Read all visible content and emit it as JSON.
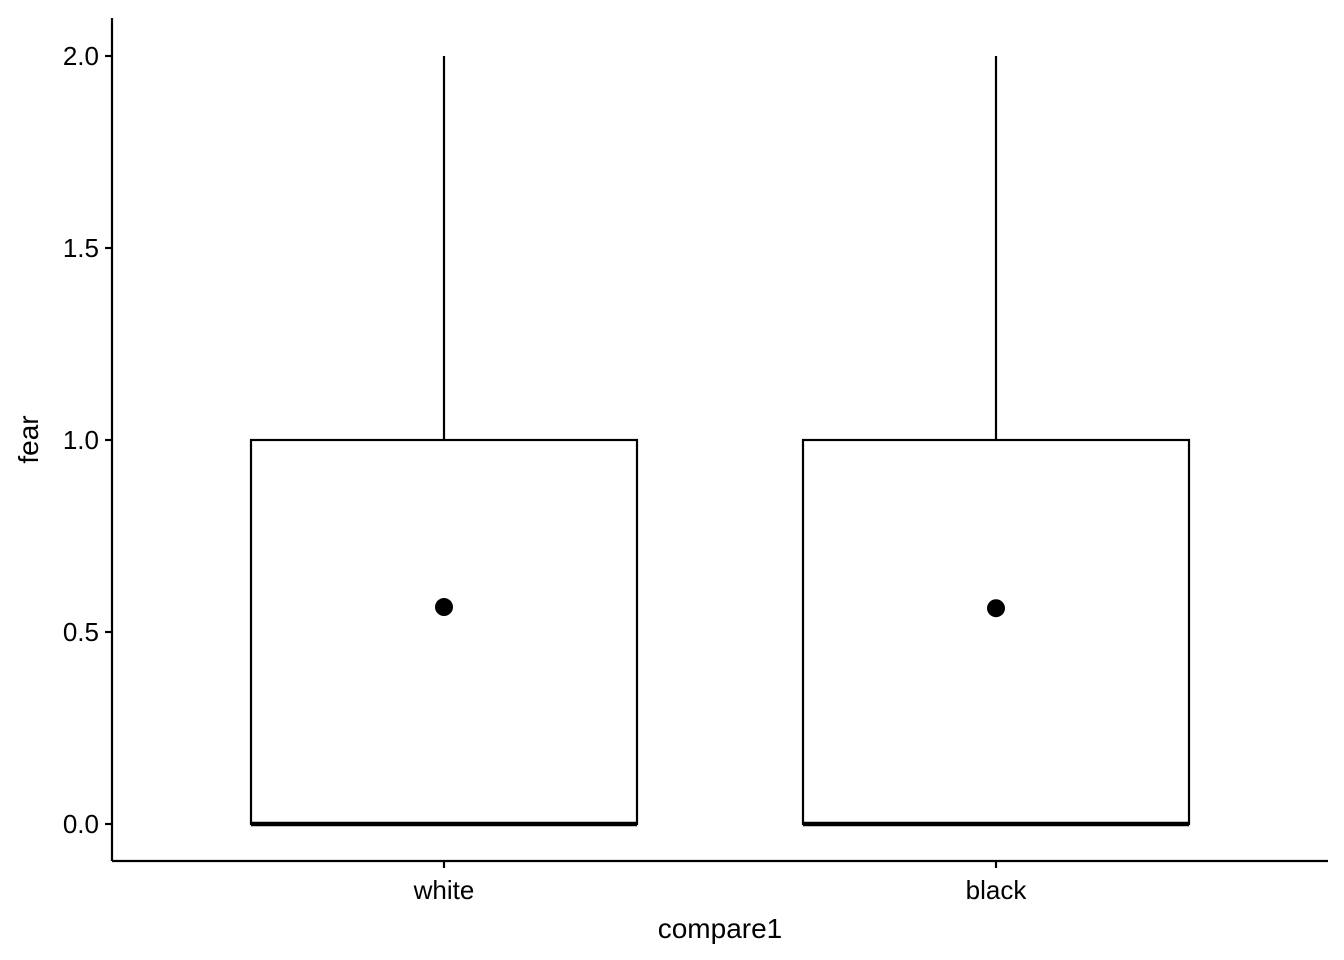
{
  "chart_data": {
    "type": "boxplot",
    "title": "",
    "xlabel": "compare1",
    "ylabel": "fear",
    "ylim": [
      -0.1,
      2.1
    ],
    "y_ticks": [
      "0.0",
      "0.5",
      "1.0",
      "1.5",
      "2.0"
    ],
    "categories": [
      "white",
      "black"
    ],
    "grid": false,
    "legend": "none",
    "boxes": [
      {
        "category": "white",
        "min": 0.0,
        "q1": 0.0,
        "median": 0.0,
        "q3": 1.0,
        "max": 2.0,
        "mean": 0.565
      },
      {
        "category": "black",
        "min": 0.0,
        "q1": 0.0,
        "median": 0.0,
        "q3": 1.0,
        "max": 2.0,
        "mean": 0.562
      }
    ],
    "colors": {
      "stroke": "#000000",
      "fill": "#ffffff",
      "mean_point": "#000000"
    }
  }
}
